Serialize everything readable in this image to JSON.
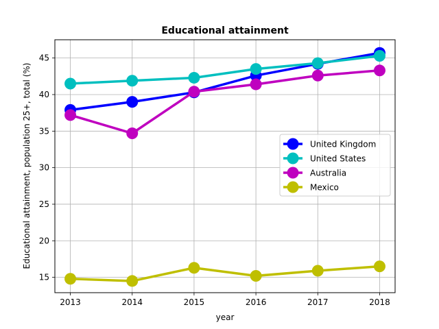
{
  "chart_data": {
    "type": "line",
    "title": "Educational attainment",
    "xlabel": "year",
    "ylabel": "Educational attainment, population 25+, total (%)",
    "x": [
      2013,
      2014,
      2015,
      2016,
      2017,
      2018
    ],
    "x_ticks": [
      "2013",
      "2014",
      "2015",
      "2016",
      "2017",
      "2018"
    ],
    "y_ticks": [
      "15",
      "20",
      "25",
      "30",
      "35",
      "40",
      "45"
    ],
    "xlim": [
      2012.75,
      2018.25
    ],
    "ylim": [
      12.9,
      47.5
    ],
    "grid": true,
    "legend_position": "center-right",
    "series": [
      {
        "name": "United Kingdom",
        "color": "#0000ff",
        "values": [
          37.9,
          39.0,
          40.3,
          42.6,
          44.2,
          45.7
        ]
      },
      {
        "name": "United States",
        "color": "#00bfbf",
        "values": [
          41.5,
          41.9,
          42.3,
          43.5,
          44.3,
          45.3
        ]
      },
      {
        "name": "Australia",
        "color": "#bf00bf",
        "values": [
          37.2,
          34.7,
          40.4,
          41.4,
          42.6,
          43.3
        ]
      },
      {
        "name": "Mexico",
        "color": "#bfbf00",
        "values": [
          14.8,
          14.5,
          16.3,
          15.2,
          15.9,
          16.5
        ]
      }
    ]
  }
}
